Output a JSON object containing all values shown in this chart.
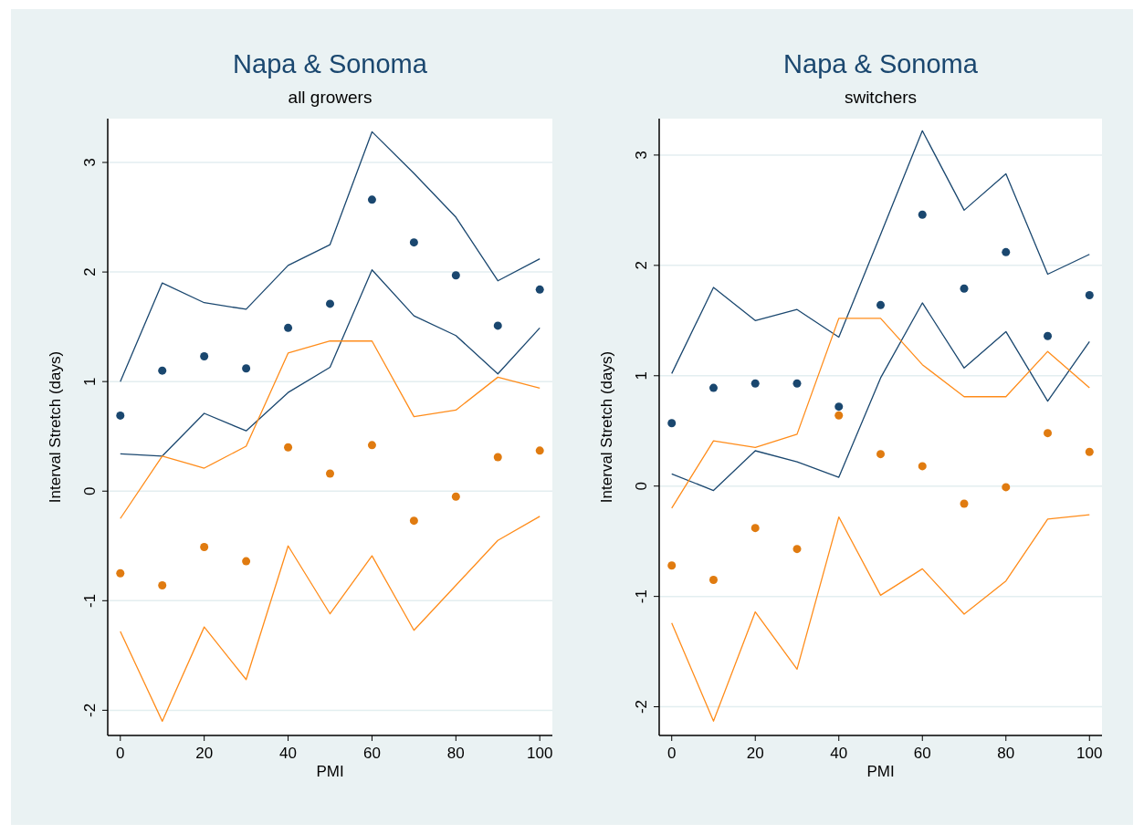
{
  "chart_data": [
    {
      "type": "scatter",
      "title": "Napa & Sonoma",
      "subtitle": "all growers",
      "xlabel": "PMI",
      "ylabel": "Interval Stretch (days)",
      "x": [
        0,
        10,
        20,
        30,
        40,
        50,
        60,
        70,
        80,
        90,
        100
      ],
      "xlim": [
        -3,
        103
      ],
      "xticks": [
        0,
        20,
        40,
        60,
        80,
        100
      ],
      "ylim": [
        -2.23,
        3.4
      ],
      "yticks": [
        -2,
        -1,
        0,
        1,
        2,
        3
      ],
      "grid": "y",
      "series": [
        {
          "type": "line",
          "color": "#1a476f",
          "values": [
            1.0,
            1.9,
            1.72,
            1.66,
            2.06,
            2.25,
            3.28,
            2.9,
            2.5,
            1.92,
            2.12
          ]
        },
        {
          "type": "line",
          "color": "#1a476f",
          "values": [
            0.34,
            0.32,
            0.71,
            0.55,
            0.9,
            1.13,
            2.02,
            1.6,
            1.42,
            1.07,
            1.49
          ]
        },
        {
          "type": "line",
          "color": "#ff8c1a",
          "values": [
            -0.25,
            0.32,
            0.21,
            0.41,
            1.26,
            1.37,
            1.37,
            0.68,
            0.74,
            1.04,
            0.94
          ]
        },
        {
          "type": "line",
          "color": "#ff8c1a",
          "values": [
            -1.28,
            -2.1,
            -1.24,
            -1.72,
            -0.5,
            -1.12,
            -0.59,
            -1.27,
            -0.86,
            -0.45,
            -0.23
          ]
        },
        {
          "marker": "circle",
          "color": "#1a476f",
          "values": [
            0.69,
            1.1,
            1.23,
            1.12,
            1.49,
            1.71,
            2.66,
            2.27,
            1.97,
            1.51,
            1.84
          ]
        },
        {
          "marker": "circle",
          "color": "#e07b10",
          "values": [
            -0.75,
            -0.86,
            -0.51,
            -0.64,
            0.4,
            0.16,
            0.42,
            -0.27,
            -0.05,
            0.31,
            0.37
          ]
        }
      ]
    },
    {
      "type": "scatter",
      "title": "Napa & Sonoma",
      "subtitle": "switchers",
      "xlabel": "PMI",
      "ylabel": "Interval Stretch (days)",
      "x": [
        0,
        10,
        20,
        30,
        40,
        50,
        60,
        70,
        80,
        90,
        100
      ],
      "xlim": [
        -3,
        103
      ],
      "xticks": [
        0,
        20,
        40,
        60,
        80,
        100
      ],
      "ylim": [
        -2.26,
        3.33
      ],
      "yticks": [
        -2,
        -1,
        0,
        1,
        2,
        3
      ],
      "grid": "y",
      "series": [
        {
          "type": "line",
          "color": "#1a476f",
          "values": [
            1.02,
            1.8,
            1.5,
            1.6,
            1.35,
            2.28,
            3.22,
            2.5,
            2.83,
            1.92,
            2.1
          ]
        },
        {
          "type": "line",
          "color": "#1a476f",
          "values": [
            0.11,
            -0.04,
            0.32,
            0.22,
            0.08,
            0.98,
            1.66,
            1.07,
            1.4,
            0.77,
            1.31
          ]
        },
        {
          "type": "line",
          "color": "#ff8c1a",
          "values": [
            -0.2,
            0.41,
            0.35,
            0.47,
            1.52,
            1.52,
            1.1,
            0.81,
            0.81,
            1.22,
            0.89
          ]
        },
        {
          "type": "line",
          "color": "#ff8c1a",
          "values": [
            -1.24,
            -2.13,
            -1.14,
            -1.66,
            -0.28,
            -0.99,
            -0.75,
            -1.16,
            -0.86,
            -0.3,
            -0.26
          ]
        },
        {
          "marker": "circle",
          "color": "#1a476f",
          "values": [
            0.57,
            0.89,
            0.93,
            0.93,
            0.72,
            1.64,
            2.46,
            1.79,
            2.12,
            1.36,
            1.73
          ]
        },
        {
          "marker": "circle",
          "color": "#e07b10",
          "values": [
            -0.72,
            -0.85,
            -0.38,
            -0.57,
            0.64,
            0.29,
            0.18,
            -0.16,
            -0.01,
            0.48,
            0.31
          ]
        }
      ]
    }
  ]
}
